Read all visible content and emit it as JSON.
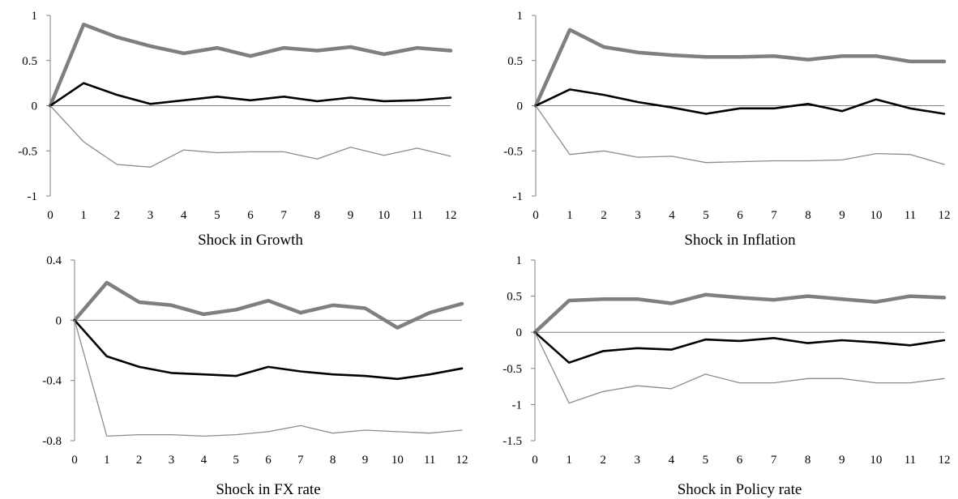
{
  "chart_data": [
    {
      "type": "line",
      "title": "",
      "xlabel": "Shock in Growth",
      "ylabel": "",
      "x": [
        0,
        1,
        2,
        3,
        4,
        5,
        6,
        7,
        8,
        9,
        10,
        11,
        12
      ],
      "xticks": [
        "0",
        "1",
        "2",
        "3",
        "4",
        "5",
        "6",
        "7",
        "8",
        "9",
        "10",
        "11",
        "12"
      ],
      "ylim": [
        -1,
        1
      ],
      "yticks": [
        1,
        0.5,
        0,
        -0.5,
        -1
      ],
      "ytick_labels": [
        "1",
        "0.5",
        "0",
        "-0.5",
        "-1"
      ],
      "series": [
        {
          "values": [
            0,
            0.9,
            0.76,
            0.66,
            0.58,
            0.64,
            0.55,
            0.64,
            0.61,
            0.65,
            0.57,
            0.64,
            0.61
          ],
          "color": "#7f7f7f",
          "style": "thick-gray"
        },
        {
          "values": [
            0,
            0.25,
            0.12,
            0.02,
            0.06,
            0.1,
            0.06,
            0.1,
            0.05,
            0.09,
            0.05,
            0.06,
            0.09
          ],
          "color": "#000000",
          "style": "medium-black"
        },
        {
          "values": [
            0,
            -0.4,
            -0.65,
            -0.68,
            -0.49,
            -0.52,
            -0.51,
            -0.51,
            -0.59,
            -0.46,
            -0.55,
            -0.47,
            -0.56
          ],
          "color": "#7f7f7f",
          "style": "thin-gray"
        }
      ]
    },
    {
      "type": "line",
      "title": "",
      "xlabel": "Shock in Inflation",
      "ylabel": "",
      "x": [
        0,
        1,
        2,
        3,
        4,
        5,
        6,
        7,
        8,
        9,
        10,
        11,
        12
      ],
      "xticks": [
        "0",
        "1",
        "2",
        "3",
        "4",
        "5",
        "6",
        "7",
        "8",
        "9",
        "10",
        "11",
        "12"
      ],
      "ylim": [
        -1,
        1
      ],
      "yticks": [
        1,
        0.5,
        0,
        -0.5,
        -1
      ],
      "ytick_labels": [
        "1",
        "0.5",
        "0",
        "-0.5",
        "-1"
      ],
      "series": [
        {
          "values": [
            0,
            0.84,
            0.65,
            0.59,
            0.56,
            0.54,
            0.54,
            0.55,
            0.51,
            0.55,
            0.55,
            0.49,
            0.49
          ],
          "color": "#7f7f7f",
          "style": "thick-gray"
        },
        {
          "values": [
            0,
            0.18,
            0.12,
            0.04,
            -0.02,
            -0.09,
            -0.03,
            -0.03,
            0.02,
            -0.06,
            0.07,
            -0.03,
            -0.09
          ],
          "color": "#000000",
          "style": "medium-black"
        },
        {
          "values": [
            0,
            -0.54,
            -0.5,
            -0.57,
            -0.56,
            -0.63,
            -0.62,
            -0.61,
            -0.61,
            -0.6,
            -0.53,
            -0.54,
            -0.65
          ],
          "color": "#7f7f7f",
          "style": "thin-gray"
        }
      ]
    },
    {
      "type": "line",
      "title": "",
      "xlabel": "Shock in FX rate",
      "ylabel": "",
      "x": [
        0,
        1,
        2,
        3,
        4,
        5,
        6,
        7,
        8,
        9,
        10,
        11,
        12
      ],
      "xticks": [
        "0",
        "1",
        "2",
        "3",
        "4",
        "5",
        "6",
        "7",
        "8",
        "9",
        "10",
        "11",
        "12"
      ],
      "ylim": [
        -0.8,
        0.4
      ],
      "yticks": [
        0.4,
        0,
        -0.4,
        -0.8
      ],
      "ytick_labels": [
        "0.4",
        "0",
        "-0.4",
        "-0.8"
      ],
      "series": [
        {
          "values": [
            0,
            0.25,
            0.12,
            0.1,
            0.04,
            0.07,
            0.13,
            0.05,
            0.1,
            0.08,
            -0.05,
            0.05,
            0.11
          ],
          "color": "#7f7f7f",
          "style": "thick-gray"
        },
        {
          "values": [
            0,
            -0.24,
            -0.31,
            -0.35,
            -0.36,
            -0.37,
            -0.31,
            -0.34,
            -0.36,
            -0.37,
            -0.39,
            -0.36,
            -0.32
          ],
          "color": "#000000",
          "style": "medium-black"
        },
        {
          "values": [
            0,
            -0.77,
            -0.76,
            -0.76,
            -0.77,
            -0.76,
            -0.74,
            -0.7,
            -0.75,
            -0.73,
            -0.74,
            -0.75,
            -0.73
          ],
          "color": "#7f7f7f",
          "style": "thin-gray"
        }
      ]
    },
    {
      "type": "line",
      "title": "",
      "xlabel": "Shock in Policy rate",
      "ylabel": "",
      "x": [
        0,
        1,
        2,
        3,
        4,
        5,
        6,
        7,
        8,
        9,
        10,
        11,
        12
      ],
      "xticks": [
        "0",
        "1",
        "2",
        "3",
        "4",
        "5",
        "6",
        "7",
        "8",
        "9",
        "10",
        "11",
        "12"
      ],
      "ylim": [
        -1.5,
        1
      ],
      "yticks": [
        1,
        0.5,
        0,
        -0.5,
        -1,
        -1.5
      ],
      "ytick_labels": [
        "1",
        "0.5",
        "0",
        "-0.5",
        "-1",
        "-1.5"
      ],
      "series": [
        {
          "values": [
            0,
            0.44,
            0.46,
            0.46,
            0.4,
            0.52,
            0.48,
            0.45,
            0.5,
            0.46,
            0.42,
            0.5,
            0.48
          ],
          "color": "#7f7f7f",
          "style": "thick-gray"
        },
        {
          "values": [
            0,
            -0.42,
            -0.26,
            -0.22,
            -0.24,
            -0.1,
            -0.12,
            -0.08,
            -0.15,
            -0.11,
            -0.14,
            -0.18,
            -0.11
          ],
          "color": "#000000",
          "style": "medium-black"
        },
        {
          "values": [
            0,
            -0.98,
            -0.82,
            -0.74,
            -0.78,
            -0.58,
            -0.7,
            -0.7,
            -0.64,
            -0.64,
            -0.7,
            -0.7,
            -0.64
          ],
          "color": "#7f7f7f",
          "style": "thin-gray"
        }
      ]
    }
  ]
}
